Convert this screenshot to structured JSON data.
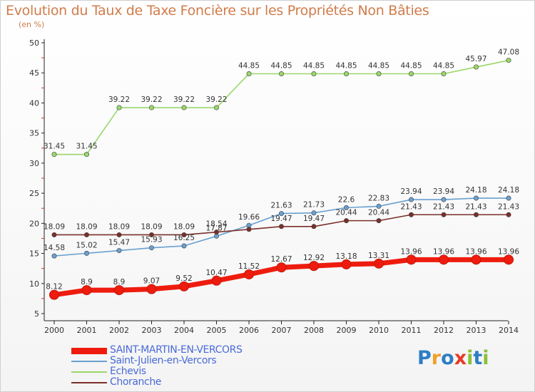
{
  "title": "Evolution du Taux de Taxe Foncière sur les Propriétés Non Bâties",
  "unit_label": "(en %)",
  "logo": {
    "text": "Proxiti",
    "letters": [
      "P",
      "r",
      "o",
      "x",
      "i",
      "t",
      "i"
    ],
    "colors": [
      "#2c7ec6",
      "#f0a028",
      "#2c7ec6",
      "#e63c28",
      "#8bbf3a",
      "#2c7ec6",
      "#8bbf3a"
    ]
  },
  "chart_data": {
    "type": "line",
    "title": "Evolution du Taux de Taxe Foncière sur les Propriétés Non Bâties",
    "ylabel": "(en %)",
    "xlabel": "",
    "x": [
      "2000",
      "2001",
      "2002",
      "2003",
      "2004",
      "2005",
      "2006",
      "2007",
      "2008",
      "2009",
      "2010",
      "2011",
      "2012",
      "2013",
      "2014"
    ],
    "ylim": [
      5,
      50
    ],
    "yticks": [
      5,
      10,
      15,
      20,
      25,
      30,
      35,
      40,
      45,
      50
    ],
    "grid": false,
    "legend_position": "bottom-left",
    "series": [
      {
        "name": "SAINT-MARTIN-EN-VERCORS",
        "color": "#ee1c0e",
        "values": [
          8.12,
          8.9,
          8.9,
          9.07,
          9.52,
          10.47,
          11.52,
          12.67,
          12.92,
          13.18,
          13.31,
          13.96,
          13.96,
          13.96,
          13.96
        ],
        "labels": [
          "8.12",
          "8.9",
          "8.9",
          "9.07",
          "9.52",
          "10.47",
          "11.52",
          "12.67",
          "12.92",
          "13.18",
          "13.31",
          "13.96",
          "13.96",
          "13.96",
          "13.96"
        ]
      },
      {
        "name": "Saint-Julien-en-Vercors",
        "color": "#6aa0d0",
        "values": [
          14.58,
          15.02,
          15.47,
          15.93,
          16.25,
          17.87,
          19.66,
          21.63,
          21.73,
          22.6,
          22.83,
          23.94,
          23.94,
          24.18,
          24.18
        ],
        "labels": [
          "14.58",
          "15.02",
          "15.47",
          "15.93",
          "16.25",
          "17.87",
          "19.66",
          "21.63",
          "21.73",
          "22.6",
          "22.83",
          "23.94",
          "23.94",
          "24.18",
          "24.18"
        ]
      },
      {
        "name": "Echevis",
        "color": "#9ad76a",
        "values": [
          31.45,
          31.45,
          39.22,
          39.22,
          39.22,
          39.22,
          44.85,
          44.85,
          44.85,
          44.85,
          44.85,
          44.85,
          44.85,
          45.97,
          47.08
        ],
        "labels": [
          "31.45",
          "31.45",
          "39.22",
          "39.22",
          "39.22",
          "39.22",
          "44.85",
          "44.85",
          "44.85",
          "44.85",
          "44.85",
          "44.85",
          "44.85",
          "45.97",
          "47.08"
        ]
      },
      {
        "name": "Choranche",
        "color": "#7a2f2a",
        "values": [
          18.09,
          18.09,
          18.09,
          18.09,
          18.09,
          18.54,
          19.0,
          19.47,
          19.47,
          20.44,
          20.44,
          21.43,
          21.43,
          21.43,
          21.43
        ],
        "labels": [
          "18.09",
          "18.09",
          "18.09",
          "18.09",
          "18.09",
          "18.54",
          "",
          "19.47",
          "19.47",
          "20.44",
          "20.44",
          "21.43",
          "21.43",
          "21.43",
          "21.43"
        ]
      }
    ]
  }
}
